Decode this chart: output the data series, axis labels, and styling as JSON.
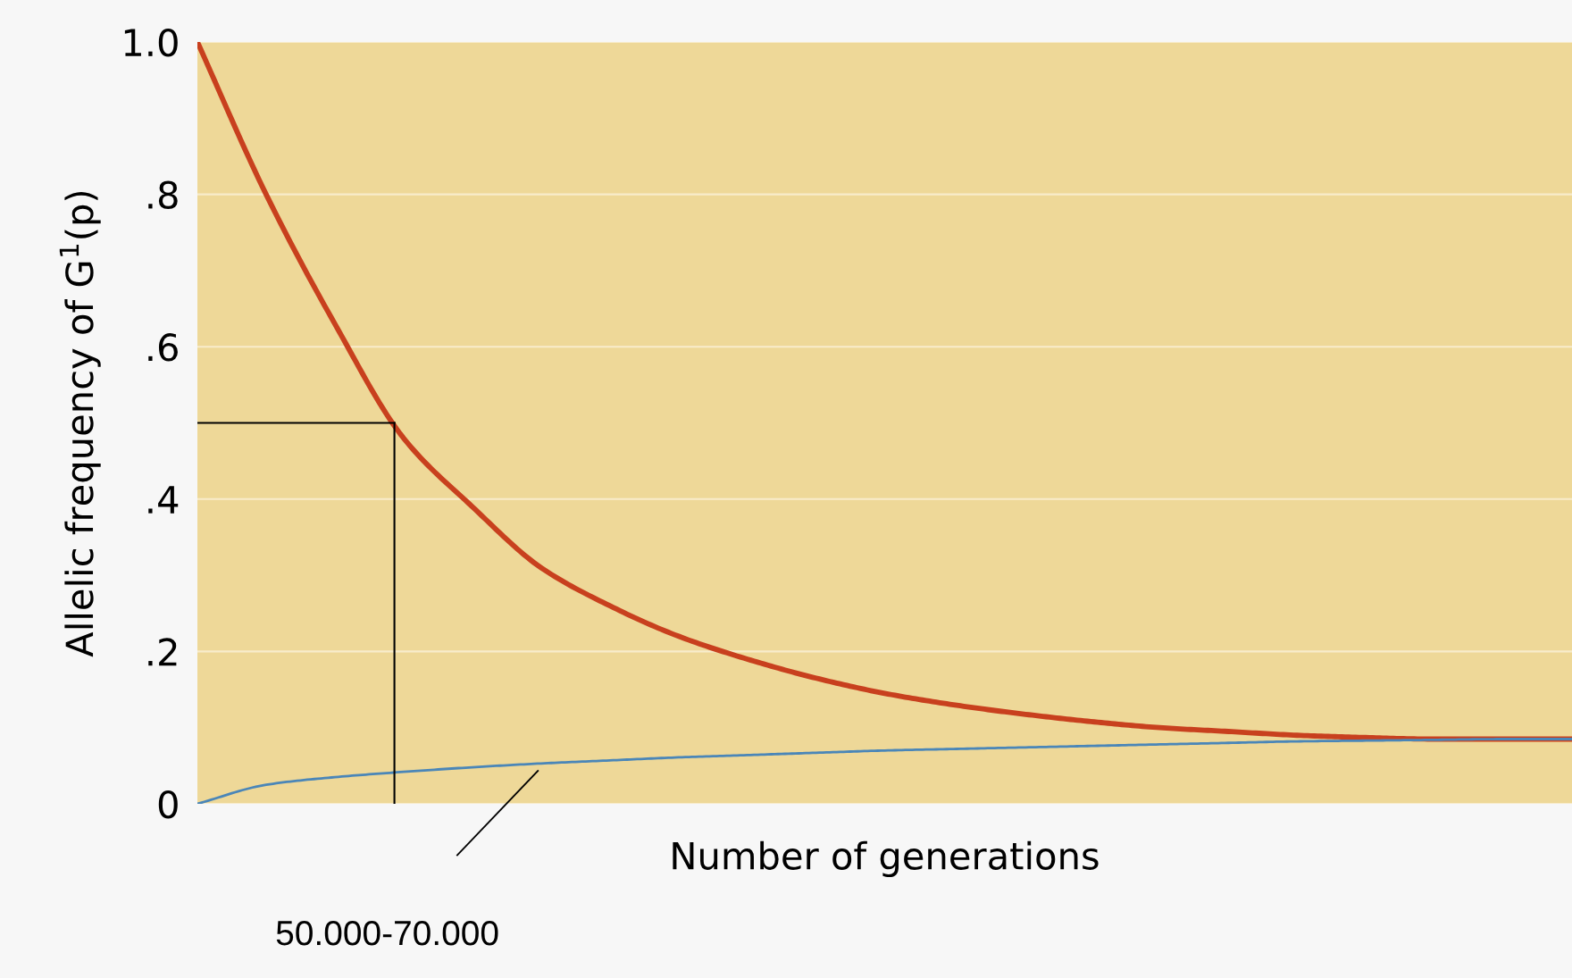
{
  "chart_data": {
    "type": "line",
    "xlabel": "Number of generations",
    "ylabel": "Allelic frequency of G$^{1}$(p)",
    "categories": [
      null,
      null,
      null,
      null,
      null,
      null,
      null,
      null,
      null,
      null,
      null,
      null,
      null,
      null,
      null,
      null,
      null,
      null,
      null,
      null,
      null
    ],
    "series": [
      {
        "color": "#c8401e",
        "values": [
          1.0,
          0.8,
          0.63,
          0.48,
          0.39,
          0.31,
          0.26,
          0.22,
          0.19,
          0.165,
          0.145,
          0.13,
          0.118,
          0.108,
          0.1,
          0.095,
          0.09,
          0.087,
          0.085,
          0.085,
          0.085
        ]
      },
      {
        "color": "#4a86b8",
        "values": [
          0,
          0.025,
          0.035,
          0.042,
          0.048,
          0.053,
          0.057,
          0.061,
          0.064,
          0.067,
          0.07,
          0.072,
          0.074,
          0.076,
          0.078,
          0.08,
          0.082,
          0.083,
          0.084,
          0.085,
          0.085
        ]
      }
    ],
    "ylim": [
      0,
      1
    ],
    "yticks": [
      0,
      {
        "value": 0.2,
        "label": ".2"
      },
      {
        "value": 0.4,
        "label": ".4"
      },
      {
        "value": 0.6,
        "label": ".6"
      },
      {
        "value": 0.8,
        "label": ".8"
      },
      {
        "value": 1,
        "label": "1.0"
      }
    ],
    "ref_lines": [
      {
        "axis": "y",
        "value": 0.5,
        "color": "#000000"
      }
    ],
    "annotations": [
      "50.000-70.000"
    ],
    "grid": "y",
    "tick_labels": "y",
    "marker": "none",
    "line_style": "solid"
  }
}
